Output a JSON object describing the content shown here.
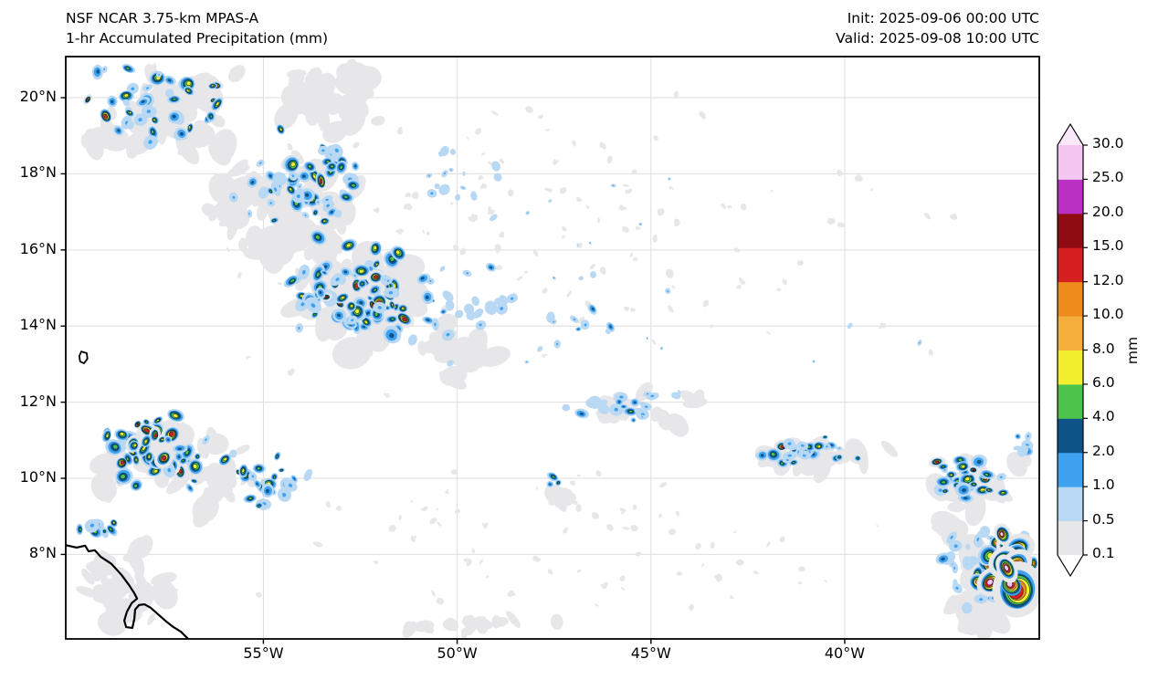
{
  "header": {
    "title_line1": "NSF NCAR 3.75-km MPAS-A",
    "title_line2": "1-hr Accumulated Precipitation (mm)",
    "init_label": "Init: 2025-09-06 00:00 UTC",
    "valid_label": "Valid: 2025-09-08 10:00 UTC"
  },
  "chart_data": {
    "type": "heatmap",
    "title": "NSF NCAR 3.75-km MPAS-A — 1-hr Accumulated Precipitation (mm)",
    "units": "mm",
    "grid": true,
    "map_axes": {
      "lon_range": [
        -60.1,
        -34.98
      ],
      "lat_range": [
        5.78,
        21.08
      ],
      "x_ticks": [
        {
          "lon": -55,
          "label": "55°W"
        },
        {
          "lon": -50,
          "label": "50°W"
        },
        {
          "lon": -45,
          "label": "45°W"
        },
        {
          "lon": -40,
          "label": "40°W"
        }
      ],
      "y_ticks": [
        {
          "lat": 20,
          "label": "20°N"
        },
        {
          "lat": 18,
          "label": "18°N"
        },
        {
          "lat": 16,
          "label": "16°N"
        },
        {
          "lat": 14,
          "label": "14°N"
        },
        {
          "lat": 12,
          "label": "12°N"
        },
        {
          "lat": 10,
          "label": "10°N"
        },
        {
          "lat": 8,
          "label": "8°N"
        }
      ]
    },
    "colorbar": {
      "unit": "mm",
      "orientation": "vertical",
      "position": "right",
      "extend": "both",
      "levels": [
        0.1,
        0.5,
        1.0,
        2.0,
        4.0,
        6.0,
        8.0,
        10.0,
        12.0,
        15.0,
        20.0,
        25.0,
        30.0
      ],
      "tick_labels": [
        "0.1",
        "0.5",
        "1.0",
        "2.0",
        "4.0",
        "6.0",
        "8.0",
        "10.0",
        "12.0",
        "15.0",
        "20.0",
        "25.0",
        "30.0"
      ],
      "colors": [
        "#e7e7e9",
        "#b9d8f3",
        "#3fa2f0",
        "#0d5386",
        "#4cc44c",
        "#f4ef2e",
        "#f6ae3c",
        "#ee8b1d",
        "#d51f20",
        "#8e0c12",
        "#ba30c3",
        "#f3c6f1"
      ],
      "under_color": "#ffffff",
      "over_color": "#fce8fb"
    },
    "precip_field": {
      "level_names": [
        "gray",
        "light_blue",
        "blue",
        "dark_blue",
        "green",
        "yellow",
        "light_orange",
        "orange",
        "red",
        "dark_red",
        "magenta",
        "pink"
      ],
      "clusters": [
        {
          "name": "nw-band-north",
          "lon": -57.7,
          "lat": 19.8,
          "dlon": 2.4,
          "dlat": 1.3,
          "count": 42,
          "size": 6.5,
          "mix": {
            "light_blue": 0.15,
            "blue": 0.3,
            "dark_blue": 0.2,
            "green": 0.15,
            "yellow": 0.15,
            "red": 0.05
          }
        },
        {
          "name": "nw-band-mid",
          "lon": -54.0,
          "lat": 17.8,
          "dlon": 2.4,
          "dlat": 1.8,
          "count": 55,
          "size": 6.5,
          "mix": {
            "light_blue": 0.08,
            "blue": 0.28,
            "dark_blue": 0.2,
            "green": 0.2,
            "yellow": 0.19,
            "red": 0.05
          }
        },
        {
          "name": "nw-band-core",
          "lon": -52.6,
          "lat": 14.9,
          "dlon": 2.2,
          "dlat": 1.7,
          "count": 80,
          "size": 7,
          "mix": {
            "blue": 0.2,
            "dark_blue": 0.18,
            "green": 0.2,
            "yellow": 0.27,
            "red": 0.13,
            "orange": 0.02
          }
        },
        {
          "name": "nw-band-east-scatter",
          "lon": -50.0,
          "lat": 14.5,
          "dlon": 2.1,
          "dlat": 1.8,
          "count": 28,
          "size": 5.5,
          "mix": {
            "light_blue": 0.3,
            "blue": 0.4,
            "dark_blue": 0.22,
            "green": 0.08
          }
        },
        {
          "name": "north-scatter",
          "lon": -49.8,
          "lat": 18.0,
          "dlon": 1.6,
          "dlat": 1.5,
          "count": 16,
          "size": 4.5,
          "mix": {
            "light_blue": 0.4,
            "blue": 0.45,
            "dark_blue": 0.15
          }
        },
        {
          "name": "mid-scatter",
          "lon": -47.0,
          "lat": 13.9,
          "dlon": 1.8,
          "dlat": 1.2,
          "count": 10,
          "size": 4.5,
          "mix": {
            "light_blue": 0.4,
            "blue": 0.4,
            "dark_blue": 0.2
          }
        },
        {
          "name": "west-itcz-main",
          "lon": -57.8,
          "lat": 10.7,
          "dlon": 1.9,
          "dlat": 1.4,
          "count": 52,
          "size": 7,
          "mix": {
            "blue": 0.18,
            "dark_blue": 0.15,
            "green": 0.2,
            "yellow": 0.28,
            "red": 0.17,
            "orange": 0.02
          }
        },
        {
          "name": "west-itcz-east",
          "lon": -54.9,
          "lat": 9.9,
          "dlon": 1.6,
          "dlat": 1.1,
          "count": 26,
          "size": 6,
          "mix": {
            "light_blue": 0.15,
            "blue": 0.3,
            "dark_blue": 0.15,
            "green": 0.2,
            "yellow": 0.15,
            "red": 0.05
          }
        },
        {
          "name": "coastal-cells",
          "lon": -58.9,
          "lat": 8.7,
          "dlon": 1.3,
          "dlat": 0.4,
          "count": 9,
          "size": 5.5,
          "mix": {
            "blue": 0.35,
            "green": 0.3,
            "yellow": 0.22,
            "red": 0.13
          }
        },
        {
          "name": "central-band-west",
          "lon": -45.5,
          "lat": 11.9,
          "dlon": 2.0,
          "dlat": 0.55,
          "count": 22,
          "size": 5.5,
          "flat": true,
          "mix": {
            "light_blue": 0.3,
            "blue": 0.45,
            "dark_blue": 0.2,
            "green": 0.05
          }
        },
        {
          "name": "central-band-mid",
          "lon": -41.2,
          "lat": 10.7,
          "dlon": 2.6,
          "dlat": 0.5,
          "count": 30,
          "size": 6,
          "flat": true,
          "mix": {
            "light_blue": 0.1,
            "blue": 0.3,
            "dark_blue": 0.2,
            "green": 0.28,
            "yellow": 0.1,
            "red": 0.02
          }
        },
        {
          "name": "central-band-east",
          "lon": -36.8,
          "lat": 10.0,
          "dlon": 1.7,
          "dlat": 0.7,
          "count": 30,
          "size": 6.5,
          "flat": true,
          "mix": {
            "blue": 0.25,
            "dark_blue": 0.15,
            "green": 0.3,
            "yellow": 0.2,
            "red": 0.1
          }
        },
        {
          "name": "se-cluster-outer",
          "lon": -36.5,
          "lat": 7.6,
          "dlon": 1.6,
          "dlat": 1.6,
          "count": 36,
          "size": 6,
          "mix": {
            "light_blue": 0.3,
            "blue": 0.4,
            "dark_blue": 0.2,
            "green": 0.1
          }
        },
        {
          "name": "se-cluster-intense",
          "lon": -35.9,
          "lat": 7.8,
          "dlon": 0.95,
          "dlat": 1.1,
          "count": 24,
          "size": 9,
          "mix": {
            "green": 0.1,
            "yellow": 0.2,
            "orange": 0.2,
            "red": 0.25,
            "dark_red": 0.05,
            "pink": 0.2
          }
        },
        {
          "name": "se-cluster-pink-cores",
          "lon": -35.8,
          "lat": 7.35,
          "dlon": 0.55,
          "dlat": 0.8,
          "count": 7,
          "size": 16,
          "mix": {
            "pink": 1.0
          }
        },
        {
          "name": "isolated-pair",
          "lon": -47.5,
          "lat": 9.9,
          "dlon": 0.3,
          "dlat": 0.25,
          "count": 3,
          "size": 5,
          "mix": {
            "green": 0.7,
            "dark_blue": 0.3
          }
        },
        {
          "name": "right-edge-scatter",
          "lon": -35.4,
          "lat": 10.9,
          "dlon": 0.5,
          "dlat": 0.7,
          "count": 6,
          "size": 5,
          "mix": {
            "light_blue": 0.3,
            "blue": 0.5,
            "dark_blue": 0.2
          }
        },
        {
          "name": "ne-speckles",
          "lon": -44.0,
          "lat": 15.5,
          "dlon": 8.5,
          "dlat": 4.5,
          "count": 18,
          "size": 2.8,
          "mix": {
            "light_blue": 0.55,
            "blue": 0.45
          }
        }
      ],
      "gray_patches": [
        {
          "name": "nw-backdrop-1",
          "lon": -57.6,
          "lat": 19.6,
          "dlon": 2.5,
          "dlat": 1.5,
          "count": 45,
          "size": 14
        },
        {
          "name": "nw-backdrop-2",
          "lon": -53.3,
          "lat": 19.9,
          "dlon": 1.9,
          "dlat": 1.2,
          "count": 28,
          "size": 12
        },
        {
          "name": "nw-backdrop-3",
          "lon": -54.4,
          "lat": 17.2,
          "dlon": 2.5,
          "dlat": 1.9,
          "count": 55,
          "size": 14
        },
        {
          "name": "nw-backdrop-4",
          "lon": -52.4,
          "lat": 14.8,
          "dlon": 2.4,
          "dlat": 1.8,
          "count": 55,
          "size": 15
        },
        {
          "name": "nw-backdrop-tail",
          "lon": -50.0,
          "lat": 13.4,
          "dlon": 1.5,
          "dlat": 1.1,
          "count": 18,
          "size": 12
        },
        {
          "name": "west-itcz-backdrop",
          "lon": -57.4,
          "lat": 10.4,
          "dlon": 2.7,
          "dlat": 1.6,
          "count": 40,
          "size": 13
        },
        {
          "name": "coast-offshore",
          "lon": -58.5,
          "lat": 7.2,
          "dlon": 1.5,
          "dlat": 1.4,
          "count": 22,
          "size": 12
        },
        {
          "name": "central-band-backdrop-west",
          "lon": -45.3,
          "lat": 11.9,
          "dlon": 2.2,
          "dlat": 0.6,
          "count": 16,
          "size": 10
        },
        {
          "name": "central-band-backdrop-mid",
          "lon": -40.9,
          "lat": 10.6,
          "dlon": 2.7,
          "dlat": 0.55,
          "count": 20,
          "size": 11
        },
        {
          "name": "central-band-backdrop-east",
          "lon": -36.7,
          "lat": 9.9,
          "dlon": 1.8,
          "dlat": 0.9,
          "count": 16,
          "size": 12
        },
        {
          "name": "se-backdrop",
          "lon": -36.2,
          "lat": 7.3,
          "dlon": 1.8,
          "dlat": 1.7,
          "count": 40,
          "size": 15
        },
        {
          "name": "sparse-north",
          "lon": -47.5,
          "lat": 16.5,
          "dlon": 11.5,
          "dlat": 5.0,
          "count": 120,
          "size": 3.2
        },
        {
          "name": "sparse-south",
          "lon": -47.0,
          "lat": 8.3,
          "dlon": 11.5,
          "dlat": 3.0,
          "count": 70,
          "size": 3.0
        },
        {
          "name": "bottom-center",
          "lon": -49.3,
          "lat": 6.2,
          "dlon": 2.3,
          "dlat": 0.5,
          "count": 10,
          "size": 8
        },
        {
          "name": "mid-blob",
          "lon": -47.4,
          "lat": 9.6,
          "dlon": 0.5,
          "dlat": 0.4,
          "count": 6,
          "size": 9
        }
      ],
      "coastline": [
        [
          -60.12,
          8.25
        ],
        [
          -59.82,
          8.18
        ],
        [
          -59.6,
          8.23
        ],
        [
          -59.51,
          8.08
        ],
        [
          -59.35,
          8.11
        ],
        [
          -59.2,
          7.94
        ],
        [
          -58.92,
          7.75
        ],
        [
          -58.66,
          7.46
        ],
        [
          -58.47,
          7.2
        ],
        [
          -58.33,
          6.98
        ],
        [
          -58.26,
          6.84
        ],
        [
          -58.4,
          6.72
        ],
        [
          -58.52,
          6.5
        ],
        [
          -58.59,
          6.26
        ],
        [
          -58.54,
          6.09
        ],
        [
          -58.38,
          6.07
        ],
        [
          -58.33,
          6.31
        ],
        [
          -58.31,
          6.55
        ],
        [
          -58.21,
          6.67
        ],
        [
          -58.07,
          6.69
        ],
        [
          -57.91,
          6.6
        ],
        [
          -57.72,
          6.43
        ],
        [
          -57.51,
          6.24
        ],
        [
          -57.32,
          6.09
        ],
        [
          -57.13,
          5.97
        ],
        [
          -56.94,
          5.78
        ]
      ],
      "islands": [
        [
          [
            -59.7,
            13.33
          ],
          [
            -59.56,
            13.29
          ],
          [
            -59.54,
            13.14
          ],
          [
            -59.63,
            13.02
          ],
          [
            -59.73,
            13.07
          ],
          [
            -59.75,
            13.21
          ]
        ]
      ]
    }
  }
}
